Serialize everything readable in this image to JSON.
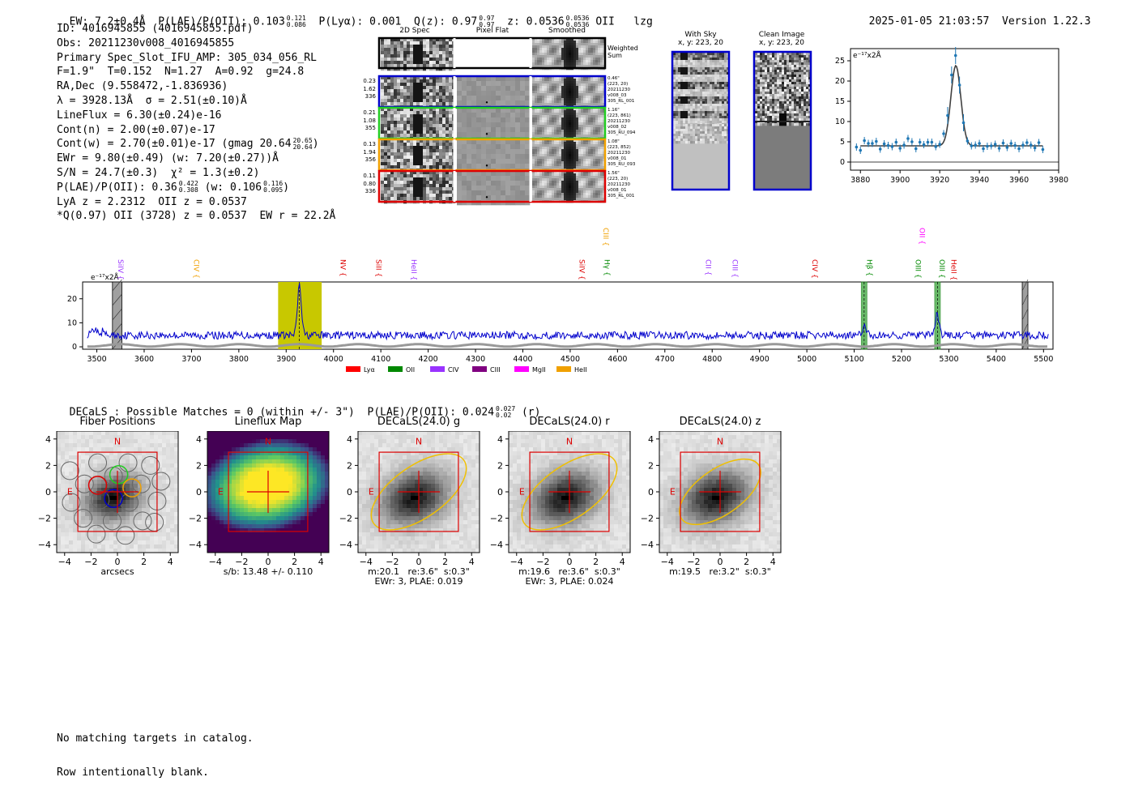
{
  "header": {
    "ew": "EW: 7.2±0.4Å",
    "plae_label": "P(LAE)/P(OII): 0.103",
    "plae_hi": "0.121",
    "plae_lo": "0.086",
    "plya": "P(Lyα): 0.001",
    "q_label": "Q(z): 0.97",
    "q_hi": "0.97",
    "q_lo": "0.97",
    "z_label": "z: 0.0536",
    "z_hi": "0.0536",
    "z_lo": "0.0536",
    "line": "OII",
    "flag": "lzg",
    "timestamp": "2025-01-05 21:03:57",
    "version": "Version 1.22.3"
  },
  "info": {
    "id": "ID: 4016945855 (4016945855.pdf)",
    "obs": "Obs: 20211230v008_4016945855",
    "primary": "Primary Spec_Slot_IFU_AMP: 305_034_056_RL",
    "params": "F=1.9\"  T=0.152  N=1.27  A=0.92  g=24.8",
    "radec": "RA,Dec (9.558472,-1.836936)",
    "lambda": "λ = 3928.13Å  σ = 2.51(±0.10)Å",
    "lineflux": "LineFlux = 6.30(±0.24)e-16",
    "contn": "Cont(n) = 2.00(±0.07)e-17",
    "contw_pre": "Cont(w) = 2.70(±0.01)e-17 (gmag 20.64",
    "contw_hi": "20.65",
    "contw_lo": "20.64",
    "contw_post": ")",
    "ewr": "EWr = 9.80(±0.49) (w: 7.20(±0.27))Å",
    "sn": "S/N = 24.7(±0.3)  χ² = 1.3(±0.2)",
    "plae_pre": "P(LAE)/P(OII): 0.36",
    "plae_hi": "0.422",
    "plae_lo": "0.308",
    "plae_mid": "(w: 0.106",
    "plae_w_hi": "0.116",
    "plae_w_lo": "0.095",
    "plae_post": ")",
    "lya": "LyA z = 2.2312  OII z = 0.0537",
    "q": "*Q(0.97) OII (3728) z = 0.0537  EW r = 22.2Å"
  },
  "cutouts": {
    "col_titles": [
      "2D Spec",
      "Pixel Flat",
      "Smoothed"
    ],
    "weighted": "Weighted\nSum",
    "rows": [
      {
        "left": "0.23\n1.62\n336",
        "right": "0.46\"\n(223, 20)\n20211230\nv008_03\n305_RL_001",
        "color": "#0000cc"
      },
      {
        "left": "0.21\n1.08\n355",
        "right": "1.16\"\n(223, 861)\n20211230\nv008_02\n305_RU_094",
        "color": "#22cc22"
      },
      {
        "left": "0.13\n1.94\n356",
        "right": "1.08\"\n(223, 852)\n20211230\nv008_01\n305_RU_093",
        "color": "#f0a000"
      },
      {
        "left": "0.11\n0.80\n336",
        "right": "1.56\"\n(223, 20)\n20211230\nv008_01\n305_RL_001",
        "color": "#dd0000"
      }
    ]
  },
  "sky_panels": [
    {
      "title": "With Sky",
      "sub": "x, y: 223, 20"
    },
    {
      "title": "Clean Image",
      "sub": "x, y: 223, 20"
    }
  ],
  "zoom_chart": {
    "unit": "e⁻¹⁷x2Å"
  },
  "colors": {
    "flux": "#0000cc",
    "fit": "#404040",
    "err_points": "#1f77b4",
    "highlight": "#c8c800",
    "line_mark": "#44aa44",
    "bad": "#a0a0a0"
  },
  "chart_data": [
    {
      "type": "scatter",
      "title": "",
      "unit_label": "e⁻¹⁷x2Å",
      "xlim": [
        3875,
        3980
      ],
      "ylim": [
        -2,
        28
      ],
      "x_ticks": [
        3880,
        3900,
        3920,
        3940,
        3960,
        3980
      ],
      "y_ticks": [
        0,
        5,
        10,
        15,
        20,
        25
      ],
      "points": [
        [
          3878,
          3.7
        ],
        [
          3880,
          2.9
        ],
        [
          3882,
          5.3
        ],
        [
          3884,
          4.6
        ],
        [
          3886,
          4.6
        ],
        [
          3888,
          5.1
        ],
        [
          3890,
          3.2
        ],
        [
          3892,
          4.5
        ],
        [
          3894,
          4.1
        ],
        [
          3896,
          3.8
        ],
        [
          3898,
          4.9
        ],
        [
          3900,
          3.4
        ],
        [
          3902,
          4.2
        ],
        [
          3904,
          5.8
        ],
        [
          3906,
          5.0
        ],
        [
          3908,
          3.3
        ],
        [
          3910,
          4.9
        ],
        [
          3912,
          4.3
        ],
        [
          3914,
          4.9
        ],
        [
          3916,
          4.9
        ],
        [
          3918,
          3.8
        ],
        [
          3920,
          4.4
        ],
        [
          3922,
          7.0
        ],
        [
          3924,
          11.5
        ],
        [
          3926,
          21.5
        ],
        [
          3928,
          26.3
        ],
        [
          3930,
          19.0
        ],
        [
          3932,
          9.7
        ],
        [
          3934,
          5.2
        ],
        [
          3936,
          4.0
        ],
        [
          3938,
          4.2
        ],
        [
          3940,
          4.6
        ],
        [
          3942,
          3.3
        ],
        [
          3944,
          3.9
        ],
        [
          3946,
          4.0
        ],
        [
          3948,
          4.4
        ],
        [
          3950,
          3.4
        ],
        [
          3952,
          4.7
        ],
        [
          3954,
          3.6
        ],
        [
          3956,
          4.6
        ],
        [
          3958,
          4.1
        ],
        [
          3960,
          3.3
        ],
        [
          3962,
          4.2
        ],
        [
          3964,
          4.8
        ],
        [
          3966,
          4.2
        ],
        [
          3968,
          3.5
        ],
        [
          3970,
          4.8
        ],
        [
          3972,
          3.1
        ]
      ],
      "fit": {
        "continuum": 4.0,
        "amplitude": 19.8,
        "center": 3928.13,
        "sigma": 2.51
      }
    },
    {
      "type": "line",
      "unit_label": "e⁻¹⁷x2Å",
      "xlim": [
        3470,
        5520
      ],
      "ylim": [
        -1,
        27
      ],
      "x_ticks": [
        3500,
        3600,
        3700,
        3800,
        3900,
        4000,
        4100,
        4200,
        4300,
        4400,
        4500,
        4600,
        4700,
        4800,
        4900,
        5000,
        5100,
        5200,
        5300,
        5400,
        5500
      ],
      "y_ticks": [
        0,
        10,
        20
      ],
      "continuum_level": 4.8,
      "emission": [
        {
          "center": 3928,
          "amplitude": 21,
          "sigma": 2.5
        },
        {
          "center": 5122,
          "amplitude": 4,
          "sigma": 2.5
        },
        {
          "center": 5275,
          "amplitude": 9,
          "sigma": 2.5
        }
      ],
      "highlight_band": [
        3883,
        3975
      ],
      "masked_regions": [
        [
          3533,
          3553
        ],
        [
          5455,
          5467
        ]
      ],
      "line_marks": [
        [
          5115,
          5127
        ],
        [
          5270,
          5282
        ]
      ],
      "lines": [
        {
          "name": "SiIV",
          "x": 3540,
          "color": "#9933ff",
          "row": 2
        },
        {
          "name": "CIV",
          "x": 3700,
          "color": "#f0a000",
          "row": 2
        },
        {
          "name": "NV",
          "x": 4010,
          "color": "#dd0000",
          "row": 2
        },
        {
          "name": "SiII",
          "x": 4085,
          "color": "#dd0000",
          "row": 2
        },
        {
          "name": "HeII",
          "x": 4160,
          "color": "#9933ff",
          "row": 2
        },
        {
          "name": "SiIV",
          "x": 4515,
          "color": "#dd0000",
          "row": 2
        },
        {
          "name": "CIII",
          "x": 4565,
          "color": "#f0a000",
          "row": 0
        },
        {
          "name": "Hγ",
          "x": 4568,
          "color": "#008800",
          "row": 2
        },
        {
          "name": "CII",
          "x": 4782,
          "color": "#9933ff",
          "row": 2
        },
        {
          "name": "CIII",
          "x": 4838,
          "color": "#9933ff",
          "row": 2
        },
        {
          "name": "CIV",
          "x": 5007,
          "color": "#dd0000",
          "row": 2
        },
        {
          "name": "Hβ",
          "x": 5122,
          "color": "#008800",
          "row": 2
        },
        {
          "name": "OII",
          "x": 5233,
          "color": "#ff00ff",
          "row": 0
        },
        {
          "name": "OIII",
          "x": 5225,
          "color": "#008800",
          "row": 2
        },
        {
          "name": "OIII",
          "x": 5275,
          "color": "#008800",
          "row": 2
        },
        {
          "name": "HeII",
          "x": 5300,
          "color": "#dd0000",
          "row": 2
        }
      ],
      "legend": [
        {
          "name": "Lyα",
          "color": "#ff0000"
        },
        {
          "name": "OII",
          "color": "#008800"
        },
        {
          "name": "CIV",
          "color": "#9933ff"
        },
        {
          "name": "CIII",
          "color": "#800080"
        },
        {
          "name": "MgII",
          "color": "#ff00ff"
        },
        {
          "name": "HeII",
          "color": "#f0a000"
        }
      ]
    },
    {
      "type": "heatmap",
      "panels": [
        {
          "title": "Fiber Positions",
          "caption1": "arcsecs",
          "caption2": "",
          "style": "gray",
          "ellipse": false
        },
        {
          "title": "Lineflux Map",
          "caption1": "s/b: 13.48 +/- 0.110",
          "caption2": "",
          "style": "viridis",
          "ellipse": false
        },
        {
          "title": "DECaLS(24.0) g",
          "caption1": "m:20.1   re:3.6\"  s:0.3\"",
          "caption2": "EWr: 3, PLAE: 0.019",
          "style": "gray",
          "ellipse": true
        },
        {
          "title": "DECaLS(24.0) r",
          "caption1": "m:19.6   re:3.6\"  s:0.3\"",
          "caption2": "EWr: 3, PLAE: 0.024",
          "style": "gray",
          "ellipse": true
        },
        {
          "title": "DECaLS(24.0) z",
          "caption1": "m:19.5   re:3.2\"  s:0.3\"",
          "caption2": "",
          "style": "gray",
          "ellipse": true
        }
      ],
      "axis_ticks": [
        -4,
        -2,
        0,
        2,
        4
      ],
      "n_label": "N",
      "e_label": "E"
    }
  ],
  "decals": {
    "line_pre": "DECaLS : Possible Matches = 0 (within +/- 3\")  P(LAE)/P(OII): 0.024",
    "hi": "0.027",
    "lo": "0.02",
    "post": "(r)"
  },
  "footer": {
    "line1": "No matching targets in catalog.",
    "line2": "Row intentionally blank."
  }
}
